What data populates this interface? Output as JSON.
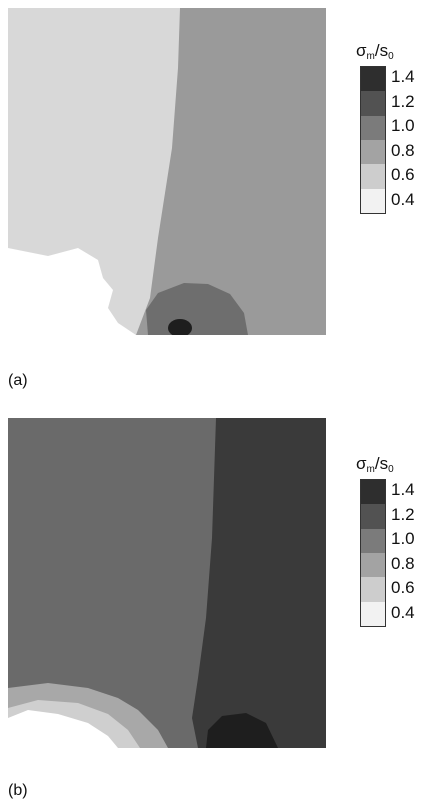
{
  "panels": [
    {
      "caption": "(a)",
      "legend": {
        "title_symbol": "σ",
        "title_subscript_m": "m",
        "title_slash": "/s",
        "title_subscript_0": "0",
        "ticks": [
          "1.4",
          "1.2",
          "1.0",
          "0.8",
          "0.6",
          "0.4"
        ]
      }
    },
    {
      "caption": "(b)",
      "legend": {
        "title_symbol": "σ",
        "title_subscript_m": "m",
        "title_slash": "/s",
        "title_subscript_0": "0",
        "ticks": [
          "1.4",
          "1.2",
          "1.0",
          "0.8",
          "0.6",
          "0.4"
        ]
      }
    }
  ],
  "colors": {
    "level_1_4": "#2e2e2e",
    "level_1_2": "#525252",
    "level_1_0": "#7b7b7b",
    "level_0_8": "#a3a3a3",
    "level_0_6": "#cdcdcd",
    "level_0_4": "#f2f2f2"
  }
}
